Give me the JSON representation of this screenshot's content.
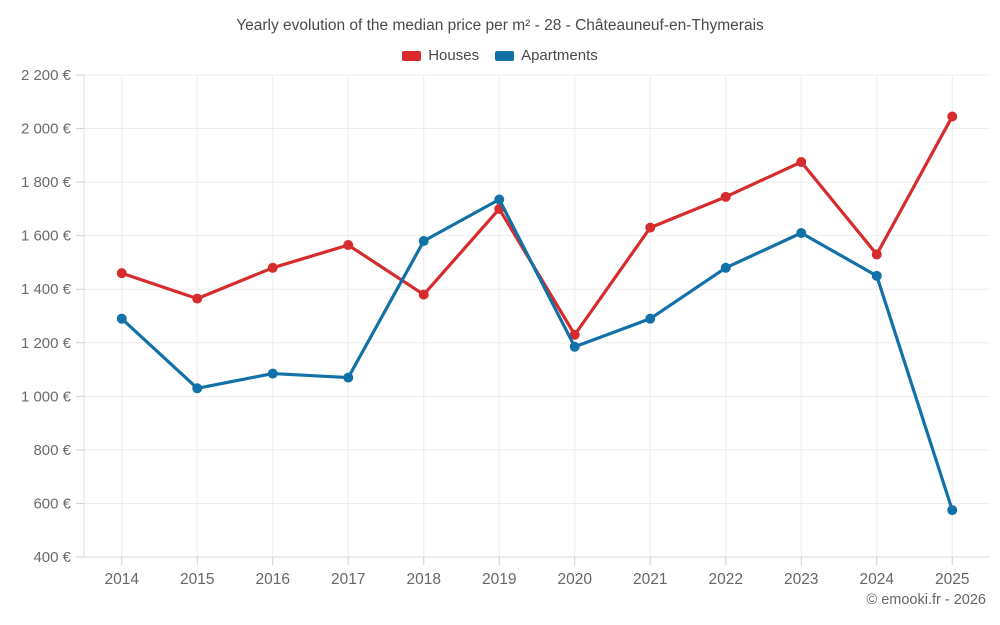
{
  "title": "Yearly evolution of the median price per m² - 28 - Châteauneuf-en-Thymerais",
  "legend": [
    {
      "label": "Houses",
      "color": "#d62c2e"
    },
    {
      "label": "Apartments",
      "color": "#1271a6"
    }
  ],
  "copyright": "© emooki.fr - 2026",
  "chart_data": {
    "type": "line",
    "title": "Yearly evolution of the median price per m² - 28 - Châteauneuf-en-Thymerais",
    "categories": [
      "2014",
      "2015",
      "2016",
      "2017",
      "2018",
      "2019",
      "2020",
      "2021",
      "2022",
      "2023",
      "2024",
      "2025"
    ],
    "series": [
      {
        "name": "Houses",
        "color": "#d62c2e",
        "values": [
          1460,
          1365,
          1480,
          1565,
          1380,
          1700,
          1230,
          1630,
          1745,
          1875,
          1530,
          2045
        ]
      },
      {
        "name": "Apartments",
        "color": "#1271a6",
        "values": [
          1290,
          1030,
          1085,
          1070,
          1580,
          1735,
          1185,
          1290,
          1480,
          1610,
          1450,
          575
        ]
      }
    ],
    "ylabel": "",
    "xlabel": "",
    "ylim": [
      400,
      2200
    ],
    "y_tick_step": 200,
    "y_tick_labels": [
      "400 €",
      "600 €",
      "800 €",
      "1 000 €",
      "1 200 €",
      "1 400 €",
      "1 600 €",
      "1 800 €",
      "2 000 €",
      "2 200 €"
    ],
    "grid": true,
    "legend_position": "top",
    "marker": "circle"
  }
}
